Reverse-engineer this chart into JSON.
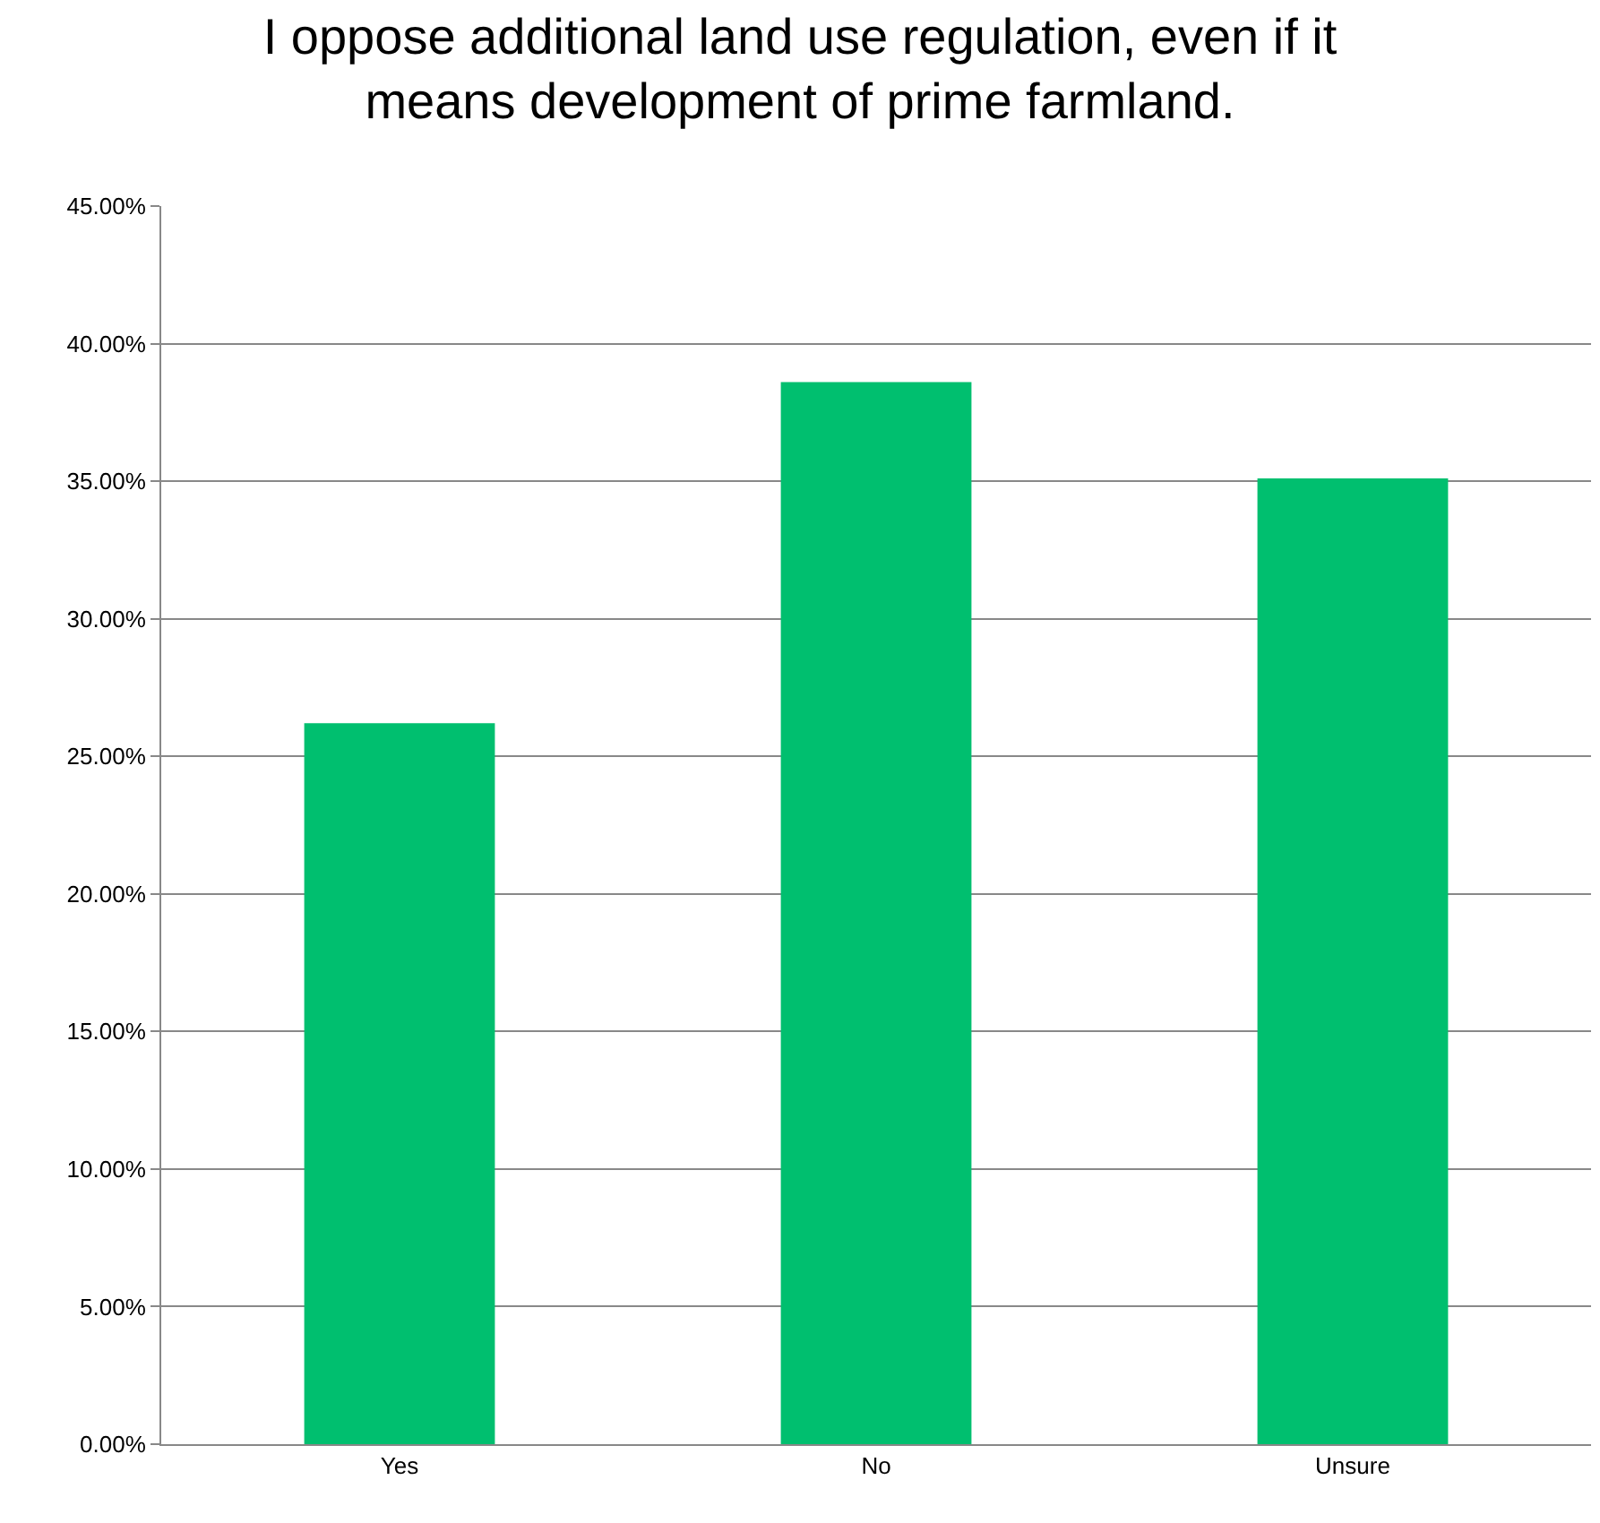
{
  "chart_data": {
    "type": "bar",
    "title": "I oppose additional land use regulation, even if it means development of prime farmland.",
    "categories": [
      "Yes",
      "No",
      "Unsure"
    ],
    "values": [
      26.2,
      38.6,
      35.1
    ],
    "color": "#00bf6f",
    "ylim": [
      0,
      45
    ],
    "yticks": [
      {
        "value": 0,
        "label": "0.00%"
      },
      {
        "value": 5,
        "label": "5.00%"
      },
      {
        "value": 10,
        "label": "10.00%"
      },
      {
        "value": 15,
        "label": "15.00%"
      },
      {
        "value": 20,
        "label": "20.00%"
      },
      {
        "value": 25,
        "label": "25.00%"
      },
      {
        "value": 30,
        "label": "30.00%"
      },
      {
        "value": 35,
        "label": "35.00%"
      },
      {
        "value": 40,
        "label": "40.00%"
      },
      {
        "value": 45,
        "label": "45.00%"
      }
    ],
    "grid": "y"
  }
}
